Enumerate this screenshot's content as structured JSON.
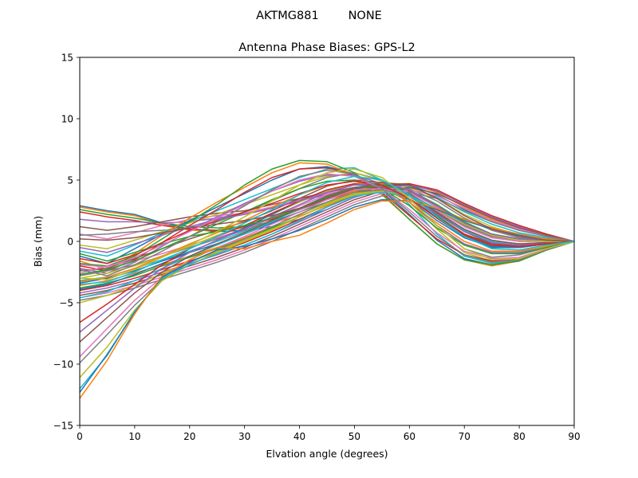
{
  "figure": {
    "suptitle": "AKTMG881        NONE"
  },
  "chart_data": {
    "type": "line",
    "title": "Antenna Phase Biases: GPS-L2",
    "xlabel": "Elvation angle (degrees)",
    "ylabel": "Bias (mm)",
    "xlim": [
      0,
      90
    ],
    "ylim": [
      -15,
      15
    ],
    "xticks": [
      0,
      10,
      20,
      30,
      40,
      50,
      60,
      70,
      80,
      90
    ],
    "yticks": [
      -15,
      -10,
      -5,
      0,
      5,
      10,
      15
    ],
    "xtick_labels": [
      "0",
      "10",
      "20",
      "30",
      "40",
      "50",
      "60",
      "70",
      "80",
      "90"
    ],
    "ytick_labels": [
      "−15",
      "−10",
      "−5",
      "0",
      "5",
      "10",
      "15"
    ],
    "grid": false,
    "legend": "none",
    "x": [
      0,
      5,
      10,
      15,
      20,
      25,
      30,
      35,
      40,
      45,
      50,
      55,
      60,
      65,
      70,
      75,
      80,
      85,
      90
    ],
    "colors": [
      "#1f77b4",
      "#ff7f0e",
      "#2ca02c",
      "#d62728",
      "#9467bd",
      "#8c564b",
      "#e377c2",
      "#7f7f7f",
      "#bcbd22",
      "#17becf"
    ],
    "series": [
      {
        "values": [
          2.9,
          2.5,
          2.2,
          1.5,
          1.0,
          0.8,
          0.9,
          1.2,
          1.8,
          2.6,
          3.6,
          4.2,
          3.4,
          1.7,
          0.3,
          -0.5,
          -0.5,
          -0.2,
          0.0
        ]
      },
      {
        "values": [
          2.8,
          2.4,
          2.1,
          1.4,
          0.9,
          0.9,
          1.1,
          1.5,
          2.1,
          2.9,
          3.8,
          4.3,
          3.5,
          1.9,
          0.4,
          -0.4,
          -0.4,
          -0.2,
          0.0
        ]
      },
      {
        "values": [
          2.6,
          2.2,
          1.9,
          1.5,
          1.2,
          1.1,
          1.2,
          1.6,
          2.4,
          3.2,
          4.0,
          4.4,
          3.7,
          2.1,
          0.6,
          -0.2,
          -0.3,
          -0.1,
          0.0
        ]
      },
      {
        "values": [
          2.4,
          2.0,
          1.7,
          1.3,
          1.0,
          0.9,
          1.2,
          1.8,
          2.6,
          3.4,
          4.1,
          4.5,
          3.9,
          2.4,
          0.9,
          0.0,
          -0.2,
          -0.1,
          0.0
        ]
      },
      {
        "values": [
          1.8,
          1.6,
          1.6,
          1.5,
          1.6,
          1.9,
          2.3,
          2.8,
          3.3,
          3.8,
          4.2,
          4.4,
          3.9,
          2.6,
          1.2,
          0.3,
          0.0,
          0.0,
          0.0
        ]
      },
      {
        "values": [
          1.2,
          0.9,
          1.2,
          1.6,
          2.0,
          2.3,
          2.5,
          3.0,
          3.5,
          4.0,
          4.4,
          4.6,
          4.1,
          2.8,
          1.4,
          0.5,
          0.1,
          0.0,
          0.0
        ]
      },
      {
        "values": [
          0.6,
          0.2,
          0.7,
          1.3,
          1.8,
          2.1,
          2.3,
          2.8,
          3.4,
          3.9,
          4.2,
          4.3,
          3.8,
          2.6,
          1.3,
          0.5,
          0.1,
          0.0,
          0.0
        ]
      },
      {
        "values": [
          0.5,
          0.6,
          0.8,
          0.9,
          1.1,
          1.6,
          2.4,
          3.3,
          4.3,
          5.2,
          5.6,
          5.0,
          3.5,
          1.3,
          -0.6,
          -1.3,
          -1.1,
          -0.5,
          0.0
        ]
      },
      {
        "values": [
          -0.3,
          -0.6,
          0.1,
          0.8,
          1.5,
          2.2,
          3.0,
          3.8,
          4.6,
          5.3,
          5.6,
          4.9,
          3.2,
          1.0,
          -0.9,
          -1.6,
          -1.4,
          -0.6,
          0.0
        ]
      },
      {
        "values": [
          -0.8,
          -1.2,
          -0.3,
          0.7,
          1.6,
          2.5,
          3.4,
          4.3,
          5.2,
          5.9,
          6.0,
          5.0,
          3.0,
          0.6,
          -1.2,
          -1.8,
          -1.5,
          -0.7,
          0.0
        ]
      },
      {
        "values": [
          -1.2,
          -1.8,
          -0.6,
          0.6,
          1.7,
          2.8,
          3.9,
          5.0,
          5.9,
          6.1,
          5.5,
          4.2,
          2.2,
          0.1,
          -1.4,
          -1.9,
          -1.6,
          -0.7,
          0.0
        ]
      },
      {
        "values": [
          -1.6,
          -2.3,
          -1.0,
          0.5,
          1.9,
          3.2,
          4.4,
          5.6,
          6.4,
          6.3,
          5.4,
          3.8,
          1.8,
          -0.2,
          -1.5,
          -2.0,
          -1.6,
          -0.7,
          0.0
        ]
      },
      {
        "values": [
          -1.8,
          -2.0,
          -1.2,
          0.2,
          1.6,
          3.0,
          4.6,
          5.9,
          6.6,
          6.5,
          5.6,
          3.9,
          1.8,
          -0.2,
          -1.5,
          -1.9,
          -1.6,
          -0.7,
          0.0
        ]
      },
      {
        "values": [
          -2.0,
          -2.4,
          -1.5,
          -0.1,
          1.3,
          2.6,
          4.0,
          5.2,
          5.9,
          6.0,
          5.4,
          4.0,
          2.1,
          0.2,
          -1.1,
          -1.6,
          -1.4,
          -0.6,
          0.0
        ]
      },
      {
        "values": [
          -2.2,
          -2.6,
          -1.7,
          -0.4,
          0.9,
          2.0,
          3.1,
          4.1,
          4.9,
          5.4,
          5.4,
          4.7,
          3.2,
          1.3,
          -0.2,
          -0.9,
          -0.9,
          -0.4,
          0.0
        ]
      },
      {
        "values": [
          -2.4,
          -2.2,
          -1.4,
          -0.6,
          0.2,
          0.9,
          1.6,
          2.5,
          3.5,
          4.5,
          5.0,
          4.8,
          3.9,
          2.3,
          0.8,
          -0.2,
          -0.4,
          -0.2,
          0.0
        ]
      },
      {
        "values": [
          -2.6,
          -2.0,
          -1.6,
          -1.0,
          -0.3,
          0.3,
          1.0,
          1.9,
          2.9,
          3.8,
          4.4,
          4.5,
          4.0,
          2.8,
          1.4,
          0.5,
          0.1,
          0.0,
          0.0
        ]
      },
      {
        "values": [
          -2.8,
          -2.4,
          -1.9,
          -1.2,
          -0.5,
          0.2,
          0.9,
          1.7,
          2.6,
          3.5,
          4.2,
          4.5,
          4.3,
          3.3,
          1.9,
          0.9,
          0.3,
          0.1,
          0.0
        ]
      },
      {
        "values": [
          -3.0,
          -2.6,
          -2.0,
          -1.2,
          -0.4,
          0.5,
          1.3,
          2.2,
          3.2,
          4.1,
          4.7,
          4.8,
          4.4,
          3.5,
          2.2,
          1.2,
          0.5,
          0.2,
          0.0
        ]
      },
      {
        "values": [
          -3.2,
          -2.9,
          -2.2,
          -1.5,
          -0.8,
          0.0,
          0.8,
          1.7,
          2.7,
          3.7,
          4.4,
          4.7,
          4.5,
          3.6,
          2.4,
          1.4,
          0.7,
          0.3,
          0.0
        ]
      },
      {
        "values": [
          -3.4,
          -3.0,
          -2.4,
          -1.6,
          -0.9,
          -0.2,
          0.6,
          1.5,
          2.4,
          3.4,
          4.2,
          4.6,
          4.6,
          3.8,
          2.6,
          1.6,
          0.9,
          0.4,
          0.0
        ]
      },
      {
        "values": [
          -3.6,
          -3.2,
          -2.6,
          -1.9,
          -1.2,
          -0.5,
          0.3,
          1.2,
          2.2,
          3.2,
          4.1,
          4.7,
          4.7,
          4.0,
          2.8,
          1.8,
          1.0,
          0.4,
          0.0
        ]
      },
      {
        "values": [
          -3.8,
          -3.4,
          -2.8,
          -2.0,
          -1.3,
          -0.6,
          0.2,
          1.1,
          2.0,
          3.0,
          3.9,
          4.6,
          4.7,
          4.1,
          3.0,
          2.0,
          1.2,
          0.5,
          0.0
        ]
      },
      {
        "values": [
          -4.0,
          -3.6,
          -3.0,
          -2.3,
          -1.6,
          -0.9,
          -0.1,
          0.8,
          1.8,
          2.8,
          3.8,
          4.5,
          4.7,
          4.2,
          3.1,
          2.1,
          1.3,
          0.6,
          0.0
        ]
      },
      {
        "values": [
          -4.2,
          -3.8,
          -3.2,
          -2.5,
          -1.8,
          -1.1,
          -0.3,
          0.6,
          1.6,
          2.6,
          3.6,
          4.3,
          4.6,
          4.1,
          3.0,
          2.0,
          1.2,
          0.5,
          0.0
        ]
      },
      {
        "values": [
          -4.4,
          -4.0,
          -3.4,
          -2.7,
          -2.0,
          -1.3,
          -0.5,
          0.4,
          1.4,
          2.4,
          3.4,
          4.1,
          4.4,
          3.9,
          2.9,
          1.9,
          1.1,
          0.5,
          0.0
        ]
      },
      {
        "values": [
          -4.6,
          -4.2,
          -3.6,
          -2.9,
          -2.2,
          -1.5,
          -0.7,
          0.2,
          1.2,
          2.2,
          3.2,
          3.9,
          4.2,
          3.7,
          2.7,
          1.7,
          1.0,
          0.4,
          0.0
        ]
      },
      {
        "values": [
          -4.8,
          -4.4,
          -3.8,
          -3.1,
          -2.4,
          -1.7,
          -0.9,
          0.0,
          1.0,
          2.0,
          3.0,
          3.7,
          4.0,
          3.5,
          2.5,
          1.6,
          0.9,
          0.4,
          0.0
        ]
      },
      {
        "values": [
          -5.0,
          -4.4,
          -3.6,
          -2.6,
          -1.7,
          -0.8,
          0.1,
          1.0,
          2.0,
          3.0,
          3.8,
          4.1,
          3.7,
          2.7,
          1.5,
          0.6,
          0.2,
          0.1,
          0.0
        ]
      },
      {
        "values": [
          -4.6,
          -4.1,
          -3.2,
          -2.2,
          -1.2,
          -0.3,
          0.6,
          1.6,
          2.7,
          3.7,
          4.4,
          4.5,
          3.8,
          2.4,
          0.9,
          0.0,
          -0.2,
          -0.1,
          0.0
        ]
      },
      {
        "values": [
          -3.9,
          -3.5,
          -2.7,
          -1.8,
          -0.9,
          0.1,
          1.1,
          2.2,
          3.3,
          4.2,
          4.7,
          4.5,
          3.5,
          1.9,
          0.4,
          -0.4,
          -0.5,
          -0.2,
          0.0
        ]
      },
      {
        "values": [
          -3.3,
          -2.9,
          -2.2,
          -1.2,
          -0.2,
          0.7,
          1.7,
          2.8,
          3.8,
          4.6,
          4.9,
          4.4,
          3.2,
          1.5,
          0.0,
          -0.8,
          -0.8,
          -0.4,
          0.0
        ]
      },
      {
        "values": [
          -2.7,
          -2.3,
          -1.6,
          -0.6,
          0.4,
          1.4,
          2.4,
          3.4,
          4.3,
          4.9,
          5.0,
          4.3,
          2.9,
          1.1,
          -0.3,
          -1.0,
          -1.0,
          -0.5,
          0.0
        ]
      },
      {
        "values": [
          -6.6,
          -5.1,
          -3.5,
          -1.9,
          -0.6,
          0.4,
          1.3,
          2.3,
          3.3,
          4.2,
          4.7,
          4.5,
          3.5,
          2.0,
          0.6,
          -0.3,
          -0.4,
          -0.2,
          0.0
        ]
      },
      {
        "values": [
          -7.4,
          -5.6,
          -3.8,
          -2.2,
          -0.9,
          0.1,
          1.0,
          2.0,
          3.0,
          4.0,
          4.6,
          4.5,
          3.7,
          2.2,
          0.8,
          -0.1,
          -0.3,
          -0.1,
          0.0
        ]
      },
      {
        "values": [
          -8.2,
          -6.2,
          -4.2,
          -2.5,
          -1.2,
          -0.2,
          0.7,
          1.7,
          2.7,
          3.7,
          4.4,
          4.4,
          3.7,
          2.4,
          1.0,
          0.1,
          -0.2,
          -0.1,
          0.0
        ]
      },
      {
        "values": [
          -9.4,
          -7.1,
          -4.8,
          -2.9,
          -1.5,
          -0.5,
          0.4,
          1.4,
          2.4,
          3.4,
          4.2,
          4.3,
          3.8,
          2.5,
          1.2,
          0.3,
          0.0,
          0.0,
          0.0
        ]
      },
      {
        "values": [
          -9.9,
          -7.6,
          -5.2,
          -3.1,
          -1.7,
          -0.7,
          0.2,
          1.2,
          2.2,
          3.2,
          4.0,
          4.2,
          3.8,
          2.6,
          1.3,
          0.4,
          0.1,
          0.0,
          0.0
        ]
      },
      {
        "values": [
          -11.1,
          -8.6,
          -5.6,
          -3.2,
          -1.9,
          -0.9,
          0.0,
          0.9,
          2.0,
          3.1,
          3.9,
          4.1,
          3.7,
          2.6,
          1.4,
          0.5,
          0.1,
          0.0,
          0.0
        ]
      },
      {
        "values": [
          -12.0,
          -9.3,
          -5.7,
          -3.0,
          -1.9,
          -1.0,
          -0.3,
          0.6,
          1.7,
          2.8,
          3.7,
          4.0,
          3.7,
          2.7,
          1.5,
          0.6,
          0.2,
          0.1,
          0.0
        ]
      },
      {
        "values": [
          -12.3,
          -9.2,
          -5.8,
          -2.9,
          -1.7,
          -0.7,
          -0.4,
          0.2,
          0.9,
          1.8,
          2.8,
          3.4,
          3.3,
          2.6,
          1.7,
          1.0,
          0.5,
          0.2,
          0.0
        ]
      },
      {
        "values": [
          -12.8,
          -9.7,
          -5.9,
          -2.8,
          -1.5,
          -0.5,
          -0.6,
          0.0,
          0.5,
          1.5,
          2.6,
          3.3,
          3.3,
          2.7,
          1.8,
          1.1,
          0.6,
          0.2,
          0.0
        ]
      },
      {
        "values": [
          -1.0,
          -1.6,
          -0.9,
          -0.2,
          0.4,
          0.8,
          1.3,
          1.9,
          2.7,
          3.6,
          4.3,
          4.6,
          4.2,
          3.0,
          1.6,
          0.6,
          0.2,
          0.1,
          0.0
        ]
      },
      {
        "values": [
          -1.4,
          -1.8,
          -1.1,
          -0.1,
          0.9,
          1.7,
          2.4,
          3.1,
          3.9,
          4.6,
          4.9,
          4.6,
          3.5,
          1.9,
          0.5,
          -0.3,
          -0.4,
          -0.2,
          0.0
        ]
      },
      {
        "values": [
          -0.5,
          -0.9,
          -0.2,
          0.5,
          1.2,
          1.8,
          2.2,
          2.7,
          3.3,
          4.0,
          4.6,
          4.8,
          4.2,
          2.9,
          1.5,
          0.6,
          0.2,
          0.1,
          0.0
        ]
      },
      {
        "values": [
          0.2,
          0.1,
          0.3,
          0.7,
          1.1,
          1.4,
          1.7,
          2.1,
          2.7,
          3.5,
          4.3,
          4.8,
          4.6,
          3.5,
          2.1,
          1.0,
          0.4,
          0.1,
          0.0
        ]
      },
      {
        "values": [
          -1.9,
          -2.1,
          -1.3,
          -0.3,
          0.8,
          1.9,
          3.0,
          4.1,
          5.0,
          5.5,
          5.3,
          4.3,
          2.6,
          0.7,
          -0.8,
          -1.4,
          -1.3,
          -0.6,
          0.0
        ]
      },
      {
        "values": [
          -2.3,
          -2.8,
          -1.9,
          -0.8,
          0.4,
          1.6,
          2.9,
          4.2,
          5.3,
          5.8,
          5.5,
          4.3,
          2.4,
          0.4,
          -1.1,
          -1.7,
          -1.5,
          -0.7,
          0.0
        ]
      },
      {
        "values": [
          -3.0,
          -3.1,
          -2.3,
          -1.3,
          -0.3,
          0.8,
          2.0,
          3.3,
          4.6,
          5.6,
          5.9,
          5.2,
          3.5,
          1.3,
          -0.6,
          -1.5,
          -1.4,
          -0.6,
          0.0
        ]
      },
      {
        "values": [
          -3.5,
          -3.3,
          -2.5,
          -1.5,
          -0.6,
          0.4,
          1.5,
          2.6,
          3.8,
          4.8,
          5.3,
          5.0,
          3.8,
          2.0,
          0.4,
          -0.6,
          -0.7,
          -0.3,
          0.0
        ]
      }
    ]
  }
}
